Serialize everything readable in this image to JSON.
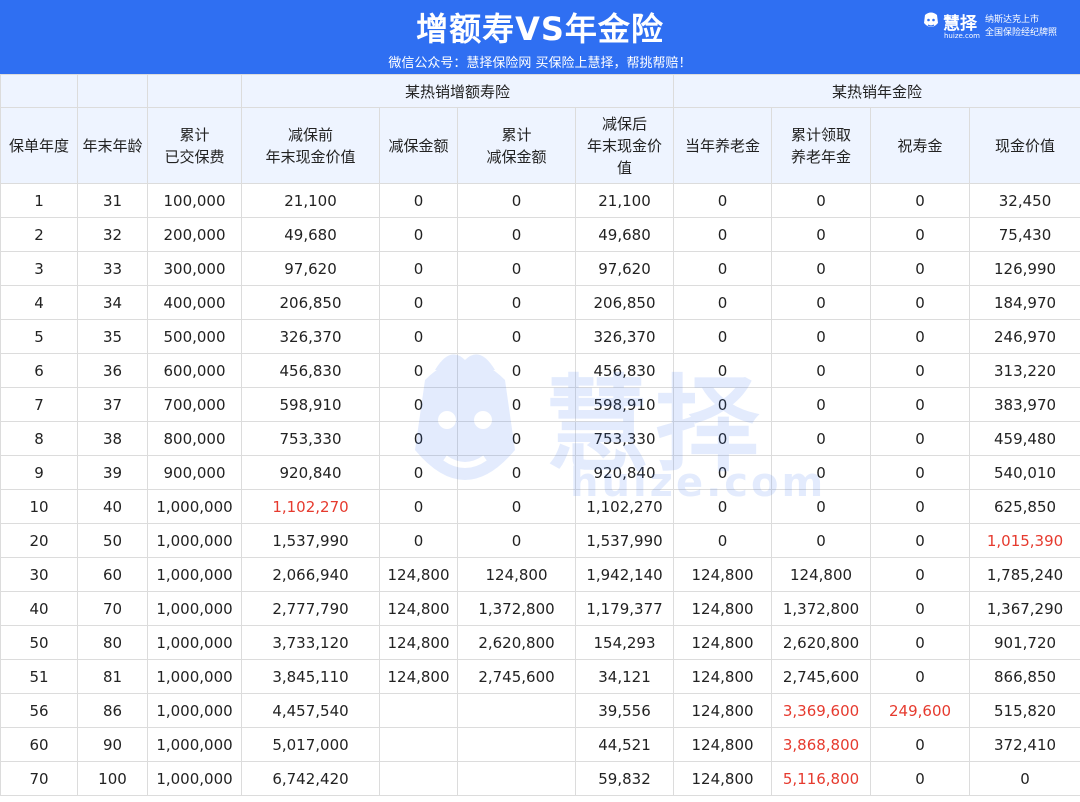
{
  "header": {
    "title": "增额寿VS年金险",
    "subtitle": "微信公众号：慧择保险网  买保险上慧择，帮挑帮赔！",
    "logo_name": "慧择",
    "logo_domain": "huize.com",
    "logo_line1": "纳斯达克上市",
    "logo_line2": "全国保险经纪牌照",
    "background_color": "#2f6ff2"
  },
  "watermark": {
    "text": "慧择",
    "domain": "huize.com"
  },
  "table": {
    "group_headers": {
      "left": "某热销增额寿险",
      "right": "某热销年金险"
    },
    "columns": [
      "保单年度",
      "年末年龄",
      "累计\n已交保费",
      "减保前\n年末现金价值",
      "减保金额",
      "累计\n减保金额",
      "减保后\n年末现金价\n值",
      "当年养老金",
      "累计领取\n养老年金",
      "祝寿金",
      "现金价值"
    ],
    "highlight_color": "#e63a2e",
    "rows": [
      [
        "1",
        "31",
        "100,000",
        "21,100",
        "0",
        "0",
        "21,100",
        "0",
        "0",
        "0",
        "32,450"
      ],
      [
        "2",
        "32",
        "200,000",
        "49,680",
        "0",
        "0",
        "49,680",
        "0",
        "0",
        "0",
        "75,430"
      ],
      [
        "3",
        "33",
        "300,000",
        "97,620",
        "0",
        "0",
        "97,620",
        "0",
        "0",
        "0",
        "126,990"
      ],
      [
        "4",
        "34",
        "400,000",
        "206,850",
        "0",
        "0",
        "206,850",
        "0",
        "0",
        "0",
        "184,970"
      ],
      [
        "5",
        "35",
        "500,000",
        "326,370",
        "0",
        "0",
        "326,370",
        "0",
        "0",
        "0",
        "246,970"
      ],
      [
        "6",
        "36",
        "600,000",
        "456,830",
        "0",
        "0",
        "456,830",
        "0",
        "0",
        "0",
        "313,220"
      ],
      [
        "7",
        "37",
        "700,000",
        "598,910",
        "0",
        "0",
        "598,910",
        "0",
        "0",
        "0",
        "383,970"
      ],
      [
        "8",
        "38",
        "800,000",
        "753,330",
        "0",
        "0",
        "753,330",
        "0",
        "0",
        "0",
        "459,480"
      ],
      [
        "9",
        "39",
        "900,000",
        "920,840",
        "0",
        "0",
        "920,840",
        "0",
        "0",
        "0",
        "540,010"
      ],
      [
        "10",
        "40",
        "1,000,000",
        "1,102,270",
        "0",
        "0",
        "1,102,270",
        "0",
        "0",
        "0",
        "625,850"
      ],
      [
        "20",
        "50",
        "1,000,000",
        "1,537,990",
        "0",
        "0",
        "1,537,990",
        "0",
        "0",
        "0",
        "1,015,390"
      ],
      [
        "30",
        "60",
        "1,000,000",
        "2,066,940",
        "124,800",
        "124,800",
        "1,942,140",
        "124,800",
        "124,800",
        "0",
        "1,785,240"
      ],
      [
        "40",
        "70",
        "1,000,000",
        "2,777,790",
        "124,800",
        "1,372,800",
        "1,179,377",
        "124,800",
        "1,372,800",
        "0",
        "1,367,290"
      ],
      [
        "50",
        "80",
        "1,000,000",
        "3,733,120",
        "124,800",
        "2,620,800",
        "154,293",
        "124,800",
        "2,620,800",
        "0",
        "901,720"
      ],
      [
        "51",
        "81",
        "1,000,000",
        "3,845,110",
        "124,800",
        "2,745,600",
        "34,121",
        "124,800",
        "2,745,600",
        "0",
        "866,850"
      ],
      [
        "56",
        "86",
        "1,000,000",
        "4,457,540",
        "",
        "",
        "39,556",
        "124,800",
        "3,369,600",
        "249,600",
        "515,820"
      ],
      [
        "60",
        "90",
        "1,000,000",
        "5,017,000",
        "",
        "",
        "44,521",
        "124,800",
        "3,868,800",
        "0",
        "372,410"
      ],
      [
        "70",
        "100",
        "1,000,000",
        "6,742,420",
        "",
        "",
        "59,832",
        "124,800",
        "5,116,800",
        "0",
        "0"
      ]
    ],
    "highlighted_cells": [
      {
        "row": 9,
        "col": 3
      },
      {
        "row": 10,
        "col": 10
      },
      {
        "row": 15,
        "col": 8
      },
      {
        "row": 15,
        "col": 9
      },
      {
        "row": 16,
        "col": 8
      },
      {
        "row": 17,
        "col": 8
      }
    ]
  }
}
